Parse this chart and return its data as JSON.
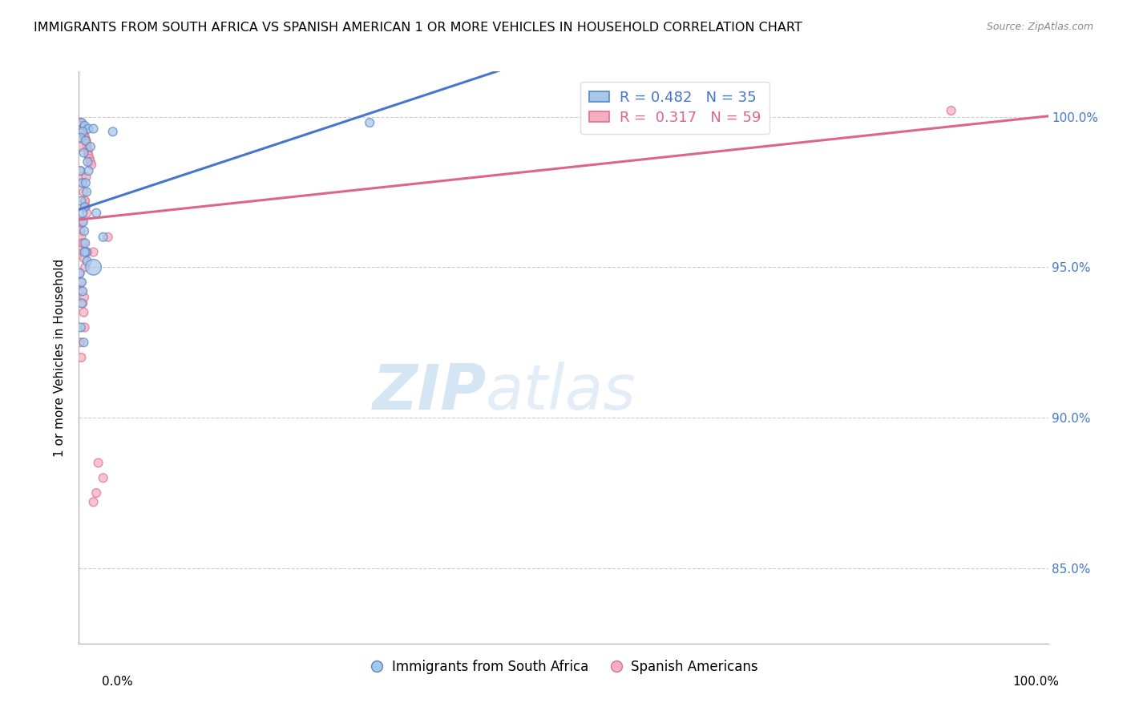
{
  "title": "IMMIGRANTS FROM SOUTH AFRICA VS SPANISH AMERICAN 1 OR MORE VEHICLES IN HOUSEHOLD CORRELATION CHART",
  "source": "Source: ZipAtlas.com",
  "ylabel": "1 or more Vehicles in Household",
  "legend_label1": "Immigrants from South Africa",
  "legend_label2": "Spanish Americans",
  "R1": 0.482,
  "N1": 35,
  "R2": 0.317,
  "N2": 59,
  "color_blue_fill": "#a8c8e8",
  "color_pink_fill": "#f4b0c0",
  "color_blue_edge": "#5588cc",
  "color_pink_edge": "#e07090",
  "color_blue_line": "#4477cc",
  "color_pink_line": "#dd6688",
  "color_blue_text": "#4477cc",
  "color_pink_text": "#dd6688",
  "watermark_zip": "ZIP",
  "watermark_atlas": "atlas",
  "xlim": [
    0.0,
    100.0
  ],
  "ylim": [
    82.5,
    101.5
  ],
  "blue_x": [
    0.3,
    0.6,
    1.0,
    1.5,
    0.4,
    0.2,
    0.7,
    1.2,
    0.5,
    0.9,
    0.15,
    0.35,
    0.8,
    0.25,
    1.8,
    0.45,
    0.55,
    0.65,
    0.75,
    0.85,
    0.1,
    2.5,
    0.4,
    0.3,
    0.6,
    3.5,
    0.2,
    0.5,
    0.7,
    1.0,
    1.5,
    0.4,
    0.3,
    0.6,
    30.0
  ],
  "blue_y": [
    99.8,
    99.7,
    99.6,
    99.6,
    99.5,
    99.3,
    99.2,
    99.0,
    98.8,
    98.5,
    98.2,
    97.8,
    97.5,
    97.2,
    96.8,
    96.5,
    96.2,
    95.8,
    95.5,
    95.2,
    94.8,
    96.0,
    94.2,
    93.8,
    97.0,
    99.5,
    93.0,
    92.5,
    97.8,
    98.2,
    95.0,
    96.8,
    94.5,
    95.5,
    99.8
  ],
  "blue_size_large": 1,
  "blue_large_idx": 30,
  "blue_large_size": 200,
  "blue_default_size": 60,
  "pink_x": [
    0.1,
    0.2,
    0.15,
    0.25,
    0.3,
    0.35,
    0.4,
    0.45,
    0.5,
    0.55,
    0.6,
    0.65,
    0.7,
    0.75,
    0.8,
    0.85,
    0.9,
    0.95,
    1.0,
    1.1,
    1.2,
    1.3,
    0.2,
    0.3,
    0.4,
    0.5,
    0.6,
    0.7,
    0.8,
    0.1,
    0.15,
    0.25,
    0.35,
    0.45,
    0.55,
    0.65,
    0.1,
    0.2,
    0.3,
    0.4,
    0.5,
    0.6,
    1.5,
    0.15,
    0.25,
    2.0,
    1.8,
    0.35,
    0.45,
    0.55,
    0.65,
    0.75,
    0.85,
    3.0,
    2.5,
    1.5,
    0.1,
    0.2,
    90.0
  ],
  "pink_y": [
    99.8,
    99.8,
    99.7,
    99.7,
    99.6,
    99.6,
    99.5,
    99.5,
    99.4,
    99.4,
    99.3,
    99.3,
    99.2,
    99.2,
    99.1,
    99.0,
    98.9,
    98.8,
    98.7,
    98.6,
    98.5,
    98.4,
    98.2,
    98.0,
    97.8,
    97.5,
    97.2,
    97.0,
    96.8,
    96.5,
    96.2,
    96.0,
    95.8,
    95.5,
    95.3,
    95.0,
    94.8,
    94.5,
    94.2,
    93.8,
    93.5,
    93.0,
    95.5,
    92.5,
    92.0,
    88.5,
    87.5,
    96.5,
    95.8,
    94.0,
    97.2,
    98.0,
    95.5,
    96.0,
    88.0,
    87.2,
    99.5,
    99.0,
    100.2
  ],
  "pink_default_size": 60
}
